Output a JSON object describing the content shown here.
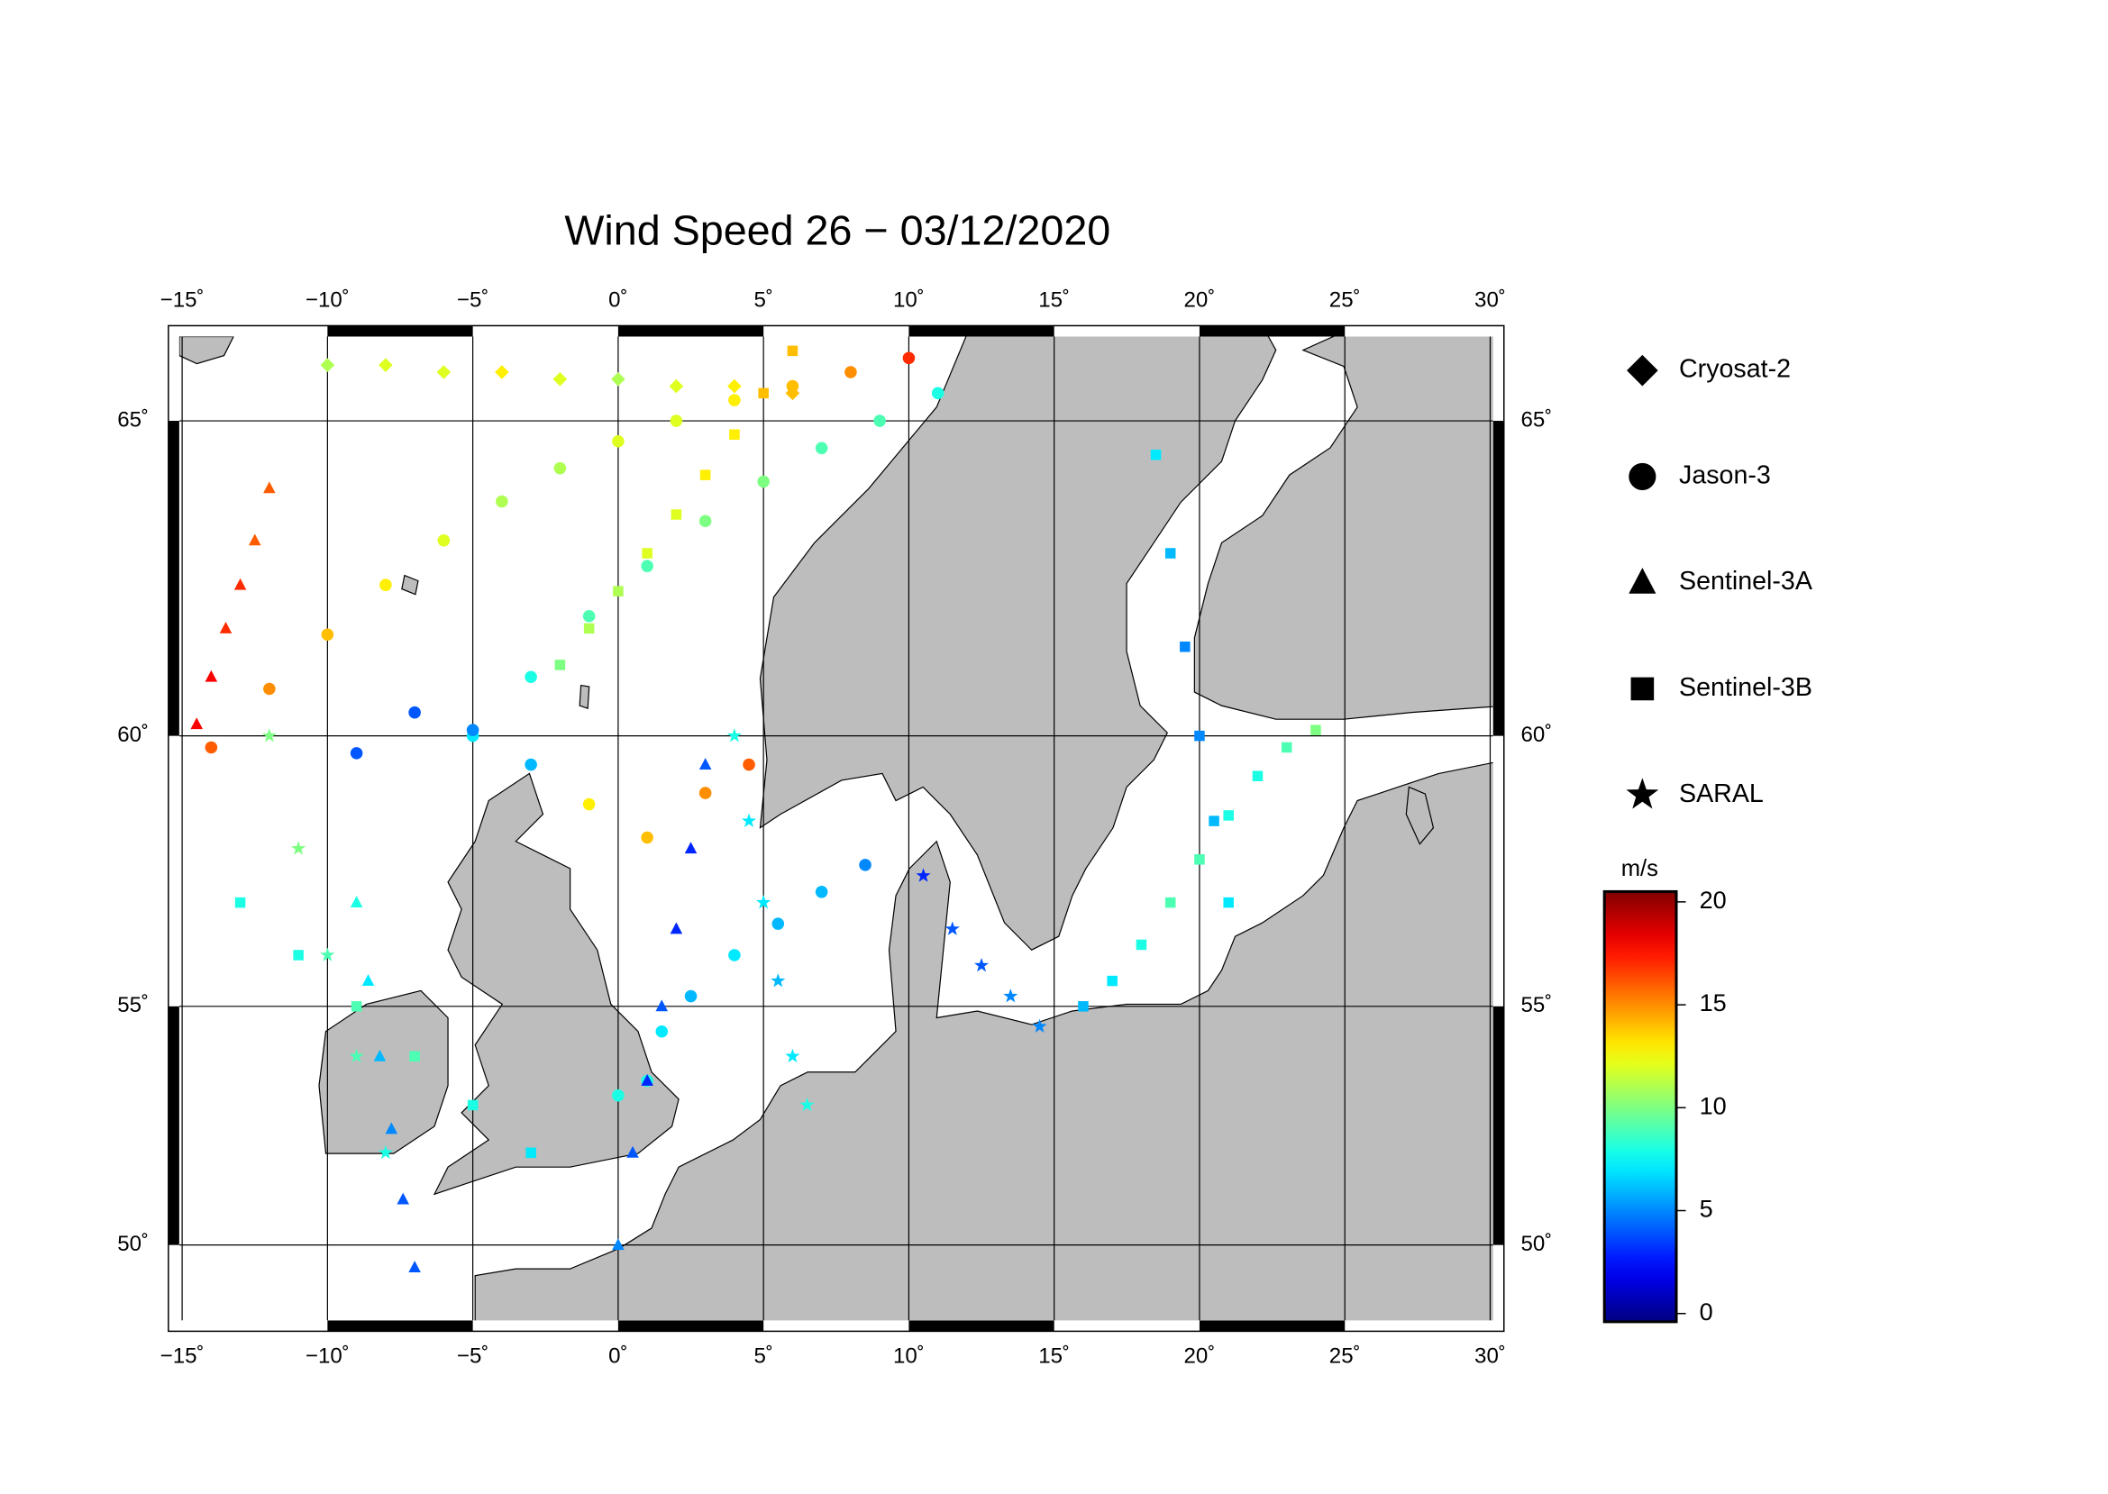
{
  "map": {
    "title": "Wind Speed 26 − 03/12/2020",
    "lonlim": [
      -15.1,
      30.1
    ],
    "latlim": [
      48.3,
      66.2
    ],
    "xticks": [
      {
        "value": -15,
        "label": "−15˚"
      },
      {
        "value": -10,
        "label": "−10˚"
      },
      {
        "value": -5,
        "label": "−5˚"
      },
      {
        "value": 0,
        "label": "0˚"
      },
      {
        "value": 5,
        "label": "5˚"
      },
      {
        "value": 10,
        "label": "10˚"
      },
      {
        "value": 15,
        "label": "15˚"
      },
      {
        "value": 20,
        "label": "20˚"
      },
      {
        "value": 25,
        "label": "25˚"
      },
      {
        "value": 30,
        "label": "30˚"
      }
    ],
    "yticks": [
      {
        "value": 65,
        "label": "65˚"
      },
      {
        "value": 60,
        "label": "60˚"
      },
      {
        "value": 55,
        "label": "55˚"
      },
      {
        "value": 50,
        "label": "50˚"
      }
    ],
    "grid": true,
    "satellites": [
      {
        "name": "Cryosat-2",
        "marker": "diamond"
      },
      {
        "name": "Jason-3",
        "marker": "circle"
      },
      {
        "name": "Sentinel-3A",
        "marker": "triangle"
      },
      {
        "name": "Sentinel-3B",
        "marker": "square"
      },
      {
        "name": "SARAL",
        "marker": "star"
      }
    ],
    "colorbar": {
      "label": "m/s",
      "lim": [
        -0.4,
        20.5
      ],
      "ticks": [
        0,
        5,
        10,
        15,
        20
      ],
      "colormap": "jet"
    },
    "tracks": [
      {
        "satellite": 0,
        "lon": [
          -10,
          -8,
          -6,
          -4,
          -2,
          0,
          2,
          4,
          6
        ],
        "lat": [
          65.8,
          65.8,
          65.7,
          65.7,
          65.6,
          65.6,
          65.5,
          65.5,
          65.4
        ],
        "values": [
          11,
          12,
          12,
          13,
          12,
          11,
          12,
          13,
          14
        ]
      },
      {
        "satellite": 1,
        "lon": [
          -14,
          -12,
          -10,
          -8,
          -6,
          -4,
          -2,
          0,
          2,
          4,
          6,
          8,
          10
        ],
        "lat": [
          59.8,
          60.8,
          61.7,
          62.5,
          63.2,
          63.8,
          64.3,
          64.7,
          65.0,
          65.3,
          65.5,
          65.7,
          65.9
        ],
        "values": [
          16,
          15,
          14,
          13,
          12,
          11,
          11,
          12,
          12,
          13,
          14,
          15,
          17
        ]
      },
      {
        "satellite": 1,
        "lon": [
          -5,
          -3,
          -1,
          1,
          3,
          5,
          7,
          9,
          11
        ],
        "lat": [
          60,
          61,
          62,
          62.8,
          63.5,
          64.1,
          64.6,
          65,
          65.4
        ],
        "values": [
          7,
          8,
          9,
          9,
          10,
          10,
          9,
          9,
          8
        ]
      },
      {
        "satellite": 1,
        "lon": [
          8.5,
          7,
          5.5,
          4,
          2.5,
          1.5,
          1,
          0
        ],
        "lat": [
          57.7,
          57.2,
          56.6,
          56,
          55.2,
          54.5,
          53.5,
          53.2
        ],
        "values": [
          5,
          6,
          6,
          7,
          6,
          7,
          8,
          8
        ]
      },
      {
        "satellite": 1,
        "lon": [
          -9,
          -7,
          -5,
          -3,
          -1,
          1,
          3,
          4.5
        ],
        "lat": [
          59.7,
          60.4,
          60.1,
          59.5,
          58.8,
          58.2,
          59.0,
          59.5
        ],
        "values": [
          4,
          4,
          5,
          6,
          13,
          14,
          15,
          16
        ]
      },
      {
        "satellite": 2,
        "lon": [
          -14.5,
          -14,
          -13.5,
          -13,
          -12.5,
          -12
        ],
        "lat": [
          60.2,
          61,
          61.8,
          62.5,
          63.2,
          64
        ],
        "values": [
          18,
          18,
          17,
          17,
          16,
          16
        ]
      },
      {
        "satellite": 2,
        "lon": [
          3,
          2.5,
          2,
          1.5,
          1,
          0.5,
          0
        ],
        "lat": [
          59.5,
          58,
          56.5,
          55,
          53.5,
          52,
          50
        ],
        "values": [
          4,
          3,
          3,
          4,
          3,
          4,
          5
        ]
      },
      {
        "satellite": 2,
        "lon": [
          -9,
          -8.6,
          -8.2,
          -7.8,
          -7.4,
          -7
        ],
        "lat": [
          57,
          55.5,
          54,
          52.5,
          51,
          49.5
        ],
        "values": [
          8,
          7,
          6,
          5,
          4,
          4
        ]
      },
      {
        "satellite": 3,
        "lon": [
          21,
          20.5,
          20,
          19.5,
          19,
          18.5
        ],
        "lat": [
          57,
          58.5,
          60,
          61.5,
          63,
          64.5
        ],
        "values": [
          7,
          6,
          5,
          5,
          6,
          7
        ]
      },
      {
        "satellite": 3,
        "lon": [
          -13,
          -11,
          -9,
          -7,
          -5,
          -3
        ],
        "lat": [
          57,
          56,
          55,
          54,
          53,
          52
        ],
        "values": [
          8,
          8,
          9,
          9,
          8,
          7
        ]
      },
      {
        "satellite": 3,
        "lon": [
          16,
          17,
          18,
          19,
          20,
          21,
          22,
          23,
          24
        ],
        "lat": [
          55,
          55.5,
          56.2,
          57,
          57.8,
          58.6,
          59.3,
          59.8,
          60.1
        ],
        "values": [
          6,
          7,
          8,
          9,
          9,
          8,
          8,
          9,
          10
        ]
      },
      {
        "satellite": 3,
        "lon": [
          6,
          5,
          4,
          3,
          2,
          1,
          0,
          -1,
          -2
        ],
        "lat": [
          66,
          65.4,
          64.8,
          64.2,
          63.6,
          63,
          62.4,
          61.8,
          61.2
        ],
        "values": [
          14,
          14,
          13,
          13,
          12,
          12,
          11,
          11,
          10
        ]
      },
      {
        "satellite": 4,
        "lon": [
          4,
          4.5,
          5,
          5.5,
          6,
          6.5
        ],
        "lat": [
          60,
          58.5,
          57,
          55.5,
          54,
          53
        ],
        "values": [
          8,
          7,
          7,
          6,
          7,
          8
        ]
      },
      {
        "satellite": 4,
        "lon": [
          -12,
          -11,
          -10,
          -9,
          -8
        ],
        "lat": [
          60,
          58,
          56,
          54,
          52
        ],
        "values": [
          10,
          10,
          9,
          9,
          8
        ]
      },
      {
        "satellite": 4,
        "lon": [
          10.5,
          11.5,
          12.5,
          13.5,
          14.5
        ],
        "lat": [
          57.5,
          56.5,
          55.8,
          55.2,
          54.6
        ],
        "values": [
          3,
          4,
          4,
          5,
          5
        ]
      }
    ]
  }
}
